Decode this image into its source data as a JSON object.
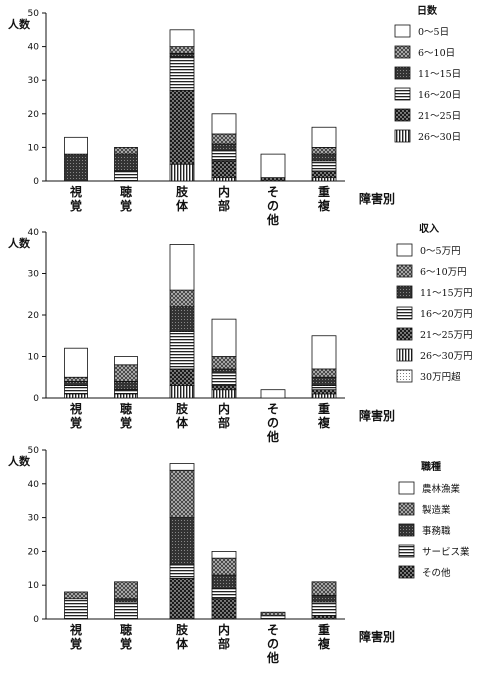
{
  "chart_data": [
    {
      "type": "bar",
      "stacked": true,
      "ylabel": "人数",
      "xlabel": "障害別",
      "ylim": [
        0,
        50
      ],
      "yticks": [
        0,
        10,
        20,
        30,
        40,
        50
      ],
      "categories": [
        "視覚",
        "聴覚",
        "肢体",
        "内部",
        "その他",
        "重複"
      ],
      "legend_title": "日数",
      "legend_position": "right",
      "series": [
        {
          "name": "26〜30日",
          "pattern": "vstripe",
          "values": [
            0,
            0,
            5,
            1,
            0,
            1
          ]
        },
        {
          "name": "21〜25日",
          "pattern": "dots",
          "values": [
            0,
            0,
            22,
            5,
            1,
            2
          ]
        },
        {
          "name": "16〜20日",
          "pattern": "hstripe",
          "values": [
            0,
            3,
            10,
            3,
            0,
            3
          ]
        },
        {
          "name": "11〜15日",
          "pattern": "dark",
          "values": [
            8,
            5,
            1,
            2,
            0,
            2
          ]
        },
        {
          "name": "6〜10日",
          "pattern": "cross",
          "values": [
            0,
            2,
            2,
            3,
            0,
            2
          ]
        },
        {
          "name": "0〜5日",
          "pattern": "white",
          "values": [
            5,
            0,
            5,
            6,
            7,
            6
          ]
        }
      ]
    },
    {
      "type": "bar",
      "stacked": true,
      "ylabel": "人数",
      "xlabel": "障害別",
      "ylim": [
        0,
        40
      ],
      "yticks": [
        0,
        10,
        20,
        30,
        40
      ],
      "categories": [
        "視覚",
        "聴覚",
        "肢体",
        "内部",
        "その他",
        "重複"
      ],
      "legend_title": "収入",
      "legend_position": "right",
      "series": [
        {
          "name": "30万円超",
          "pattern": "fine",
          "values": [
            0,
            0,
            0,
            0,
            0,
            0
          ]
        },
        {
          "name": "26〜30万円",
          "pattern": "vstripe",
          "values": [
            1,
            1,
            3,
            2,
            0,
            1
          ]
        },
        {
          "name": "21〜25万円",
          "pattern": "dots",
          "values": [
            0,
            0,
            4,
            1,
            0,
            1
          ]
        },
        {
          "name": "16〜20万円",
          "pattern": "hstripe",
          "values": [
            2,
            1,
            9,
            3,
            0,
            1
          ]
        },
        {
          "name": "11〜15万円",
          "pattern": "dark",
          "values": [
            1,
            2,
            6,
            1,
            0,
            2
          ]
        },
        {
          "name": "6〜10万円",
          "pattern": "cross",
          "values": [
            1,
            4,
            4,
            3,
            0,
            2
          ]
        },
        {
          "name": "0〜5万円",
          "pattern": "white",
          "values": [
            7,
            2,
            11,
            9,
            2,
            8
          ]
        }
      ]
    },
    {
      "type": "bar",
      "stacked": true,
      "ylabel": "人数",
      "xlabel": "障害別",
      "ylim": [
        0,
        50
      ],
      "yticks": [
        0,
        10,
        20,
        30,
        40,
        50
      ],
      "categories": [
        "視覚",
        "聴覚",
        "肢体",
        "内部",
        "その他",
        "重複"
      ],
      "legend_title": "職種",
      "legend_position": "right",
      "series": [
        {
          "name": "その他",
          "pattern": "dots",
          "values": [
            0,
            0,
            12,
            6,
            0,
            1
          ]
        },
        {
          "name": "サービス業",
          "pattern": "hstripe",
          "values": [
            6,
            5,
            4,
            3,
            1,
            4
          ]
        },
        {
          "name": "事務職",
          "pattern": "dark",
          "values": [
            0,
            1,
            14,
            4,
            0,
            2
          ]
        },
        {
          "name": "製造業",
          "pattern": "cross",
          "values": [
            2,
            5,
            14,
            5,
            1,
            4
          ]
        },
        {
          "name": "農林漁業",
          "pattern": "white",
          "values": [
            0,
            0,
            2,
            2,
            0,
            0
          ]
        }
      ]
    }
  ]
}
